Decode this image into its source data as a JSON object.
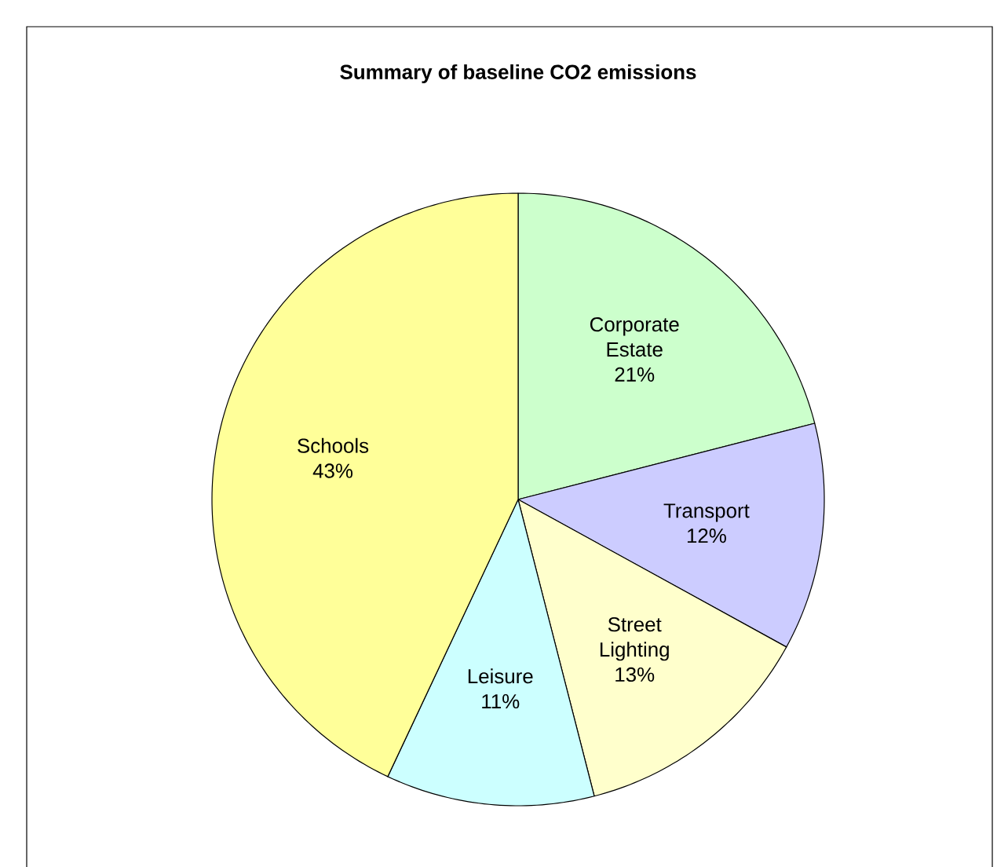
{
  "chart_data": {
    "type": "pie",
    "title": "Summary of baseline CO2 emissions",
    "categories": [
      "Corporate Estate",
      "Transport",
      "Street Lighting",
      "Leisure",
      "Schools"
    ],
    "values": [
      21,
      12,
      13,
      11,
      43
    ],
    "value_labels": [
      "21%",
      "12%",
      "13%",
      "11%",
      "43%"
    ],
    "colors": [
      "#ccffcc",
      "#ccccff",
      "#ffffcc",
      "#ccffff",
      "#ffff99"
    ],
    "legend": false
  }
}
